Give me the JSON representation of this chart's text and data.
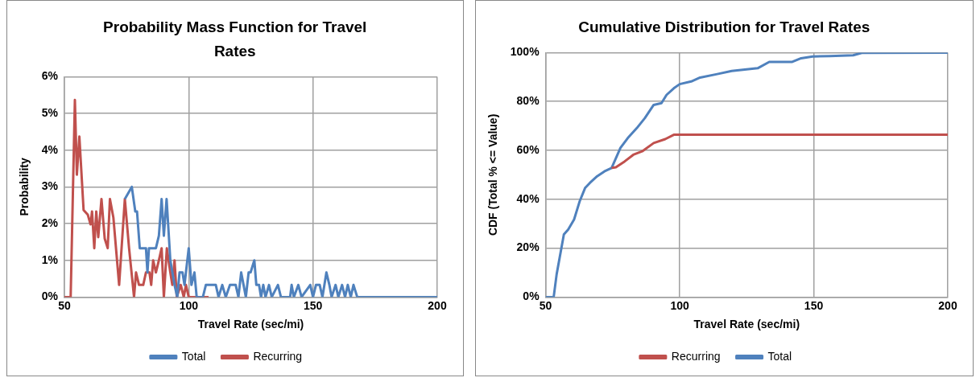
{
  "chart_data": [
    {
      "type": "line",
      "title": "Probability Mass Function for Travel Rates",
      "xlabel": "Travel Rate (sec/mi)",
      "ylabel": "Probability",
      "xlim": [
        50,
        200
      ],
      "xticks": [
        50,
        100,
        150,
        200
      ],
      "ylim": [
        0,
        6
      ],
      "yticks": [
        {
          "value": 0,
          "label": "0%"
        },
        {
          "value": 1,
          "label": "1%"
        },
        {
          "value": 2,
          "label": "2%"
        },
        {
          "value": 3,
          "label": "3%"
        },
        {
          "value": 4,
          "label": "4%"
        },
        {
          "value": 5,
          "label": "5%"
        },
        {
          "value": 6,
          "label": "6%"
        }
      ],
      "grid": true,
      "legend": "bottom",
      "marker": "none",
      "line_style": "solid",
      "series": [
        {
          "name": "Total",
          "color": "#4f81bd",
          "x": [
            74.3,
            77.1,
            78.5,
            79.2,
            80.3,
            82.8,
            83.4,
            84,
            86.8,
            88,
            89.1,
            90,
            91.1,
            92.6,
            94.3,
            95.4,
            96.3,
            97.5,
            98.3,
            100,
            101.1,
            102.3,
            103.2,
            105.7,
            106.9,
            110.9,
            112,
            113.5,
            114.9,
            116.6,
            118.9,
            120,
            121.1,
            123,
            124.1,
            124.9,
            126.4,
            127.2,
            128.3,
            129.1,
            130,
            130.9,
            132.3,
            133.4,
            135.9,
            137.1,
            140.8,
            141.4,
            142.3,
            144.1,
            145.4,
            148.9,
            150,
            151.2,
            152.7,
            153.8,
            155.4,
            156.6,
            157.5,
            159.1,
            160.2,
            161.7,
            162.9,
            164,
            165.2,
            166.3,
            167.8,
            200
          ],
          "values": [
            2.67,
            3,
            2.33,
            2.33,
            1.33,
            1.33,
            0.67,
            1.33,
            1.33,
            1.67,
            2.67,
            1.67,
            2.67,
            1,
            0.33,
            0,
            0.67,
            0.67,
            0.33,
            1.33,
            0.33,
            0.67,
            0,
            0,
            0.33,
            0.33,
            0,
            0.33,
            0,
            0.33,
            0.33,
            0,
            0.67,
            0,
            0.67,
            0.67,
            1,
            0.33,
            0.33,
            0,
            0.33,
            0,
            0.33,
            0,
            0.33,
            0,
            0,
            0.33,
            0,
            0.33,
            0,
            0.33,
            0,
            0.33,
            0.33,
            0,
            0.67,
            0.33,
            0,
            0.33,
            0,
            0.33,
            0,
            0.33,
            0,
            0.33,
            0,
            0
          ]
        },
        {
          "name": "Recurring",
          "color": "#c0504d",
          "x": [
            50,
            52.5,
            54.2,
            55,
            56,
            57.7,
            59.4,
            60.5,
            61.1,
            62,
            62.8,
            63.6,
            64.9,
            66.2,
            67.4,
            68.3,
            69.7,
            72,
            74.3,
            76,
            78,
            78.8,
            80,
            81.7,
            82.8,
            84.2,
            84.9,
            85.7,
            86.8,
            88,
            89.1,
            90,
            91.2,
            92.6,
            93.4,
            94.3,
            95.2,
            96.8,
            98,
            98.9,
            100,
            108
          ],
          "values": [
            0,
            0,
            5.37,
            3.33,
            4.37,
            2.37,
            2.24,
            1.98,
            2.33,
            1.33,
            2.33,
            1.63,
            2.67,
            1.59,
            1.33,
            2.67,
            2.16,
            0.33,
            2.67,
            1.33,
            0,
            0.67,
            0.33,
            0.33,
            0.67,
            0.67,
            0.33,
            1,
            0.67,
            1,
            1.33,
            0,
            1.33,
            0.67,
            0.33,
            1,
            0,
            0.33,
            0,
            0.33,
            0,
            0
          ]
        }
      ]
    },
    {
      "type": "line",
      "title": "Cumulative Distribution for Travel Rates",
      "xlabel": "Travel Rate (sec/mi)",
      "ylabel": "CDF (Total % <= Value)",
      "xlim": [
        50,
        200
      ],
      "xticks": [
        50,
        100,
        150,
        200
      ],
      "ylim": [
        0,
        100
      ],
      "yticks": [
        {
          "value": 0,
          "label": "0%"
        },
        {
          "value": 20,
          "label": "20%"
        },
        {
          "value": 40,
          "label": "40%"
        },
        {
          "value": 60,
          "label": "60%"
        },
        {
          "value": 80,
          "label": "80%"
        },
        {
          "value": 100,
          "label": "100%"
        }
      ],
      "grid": true,
      "legend": "bottom",
      "marker": "none",
      "line_style": "solid",
      "series": [
        {
          "name": "Recurring",
          "color": "#c0504d",
          "x": [
            74.6,
            76.2,
            79.5,
            82.7,
            86,
            90.3,
            94.6,
            97.8,
            200
          ],
          "values": [
            52.8,
            53.1,
            55.5,
            58.2,
            59.6,
            63,
            64.6,
            66.4,
            66.4
          ]
        },
        {
          "name": "Total",
          "color": "#4f81bd",
          "x": [
            50,
            53,
            54.1,
            56.8,
            58.4,
            60.6,
            62.7,
            64.7,
            66.5,
            69.2,
            71.9,
            74.6,
            77.9,
            80.6,
            84,
            87,
            90.3,
            93.2,
            95.1,
            97.8,
            100,
            104.3,
            107.6,
            114,
            119.4,
            129.1,
            133.4,
            142,
            145.3,
            149.6,
            156,
            164.7,
            167.9,
            200
          ],
          "values": [
            0,
            0,
            9.3,
            25.6,
            27.6,
            31.7,
            39.2,
            44.6,
            46.7,
            49.4,
            51.4,
            52.8,
            61,
            65,
            69.1,
            73.2,
            78.6,
            79.3,
            82.7,
            85.4,
            87.1,
            88.2,
            89.8,
            91.2,
            92.5,
            93.6,
            96.2,
            96.2,
            97.7,
            98.4,
            98.6,
            98.9,
            99.9,
            100
          ]
        }
      ]
    }
  ]
}
